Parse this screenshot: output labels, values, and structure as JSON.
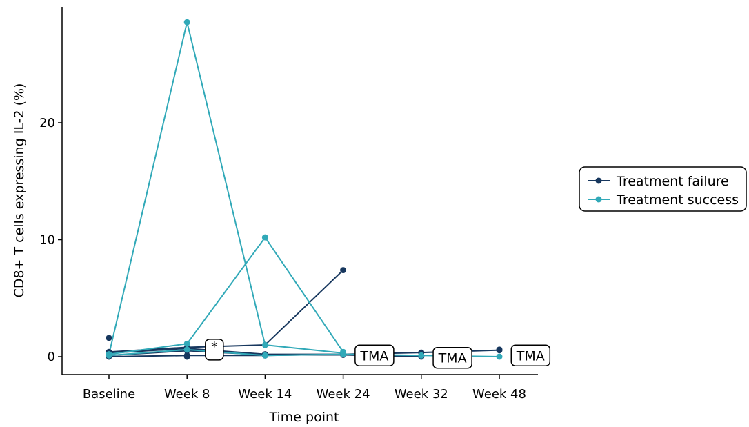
{
  "chart_data": {
    "type": "line",
    "xlabel": "Time point",
    "ylabel": "CD8+ T cells expressing IL-2 (%)",
    "categories": [
      "Baseline",
      "Week 8",
      "Week 14",
      "Week 24",
      "Week 32",
      "Week 48"
    ],
    "ylim": [
      -1.5,
      30
    ],
    "yticks": [
      0,
      10,
      20
    ],
    "grid": false,
    "legend_placement": "right",
    "groups": [
      {
        "name": "Treatment failure",
        "color": "#17375e"
      },
      {
        "name": "Treatment success",
        "color": "#31a9b8"
      }
    ],
    "series": [
      {
        "group": "Treatment failure",
        "values": [
          1.6,
          null,
          null,
          null,
          null,
          null
        ]
      },
      {
        "group": "Treatment failure",
        "values": [
          0.4,
          0.8,
          1.0,
          7.4,
          null,
          0.6
        ]
      },
      {
        "group": "Treatment failure",
        "values": [
          0.3,
          0.7,
          0.2,
          0.2,
          0.35,
          0.55
        ]
      },
      {
        "group": "Treatment failure",
        "values": [
          0.1,
          0.5,
          0.15,
          0.15,
          0.0,
          null
        ]
      },
      {
        "group": "Treatment failure",
        "values": [
          0.0,
          0.1,
          0.1,
          0.2,
          null,
          null
        ]
      },
      {
        "group": "Treatment failure",
        "values": [
          null,
          0.0,
          null,
          null,
          null,
          null
        ]
      },
      {
        "group": "Treatment success",
        "values": [
          0.2,
          28.6,
          1.0,
          0.3,
          null,
          null
        ]
      },
      {
        "group": "Treatment success",
        "values": [
          0.2,
          1.1,
          10.2,
          0.4,
          null,
          null
        ]
      },
      {
        "group": "Treatment success",
        "values": [
          0.1,
          0.6,
          0.1,
          0.2,
          0.1,
          0.0
        ]
      }
    ],
    "annotations": [
      {
        "text": "*",
        "category": "Week 8",
        "offset": 0.35,
        "y": 0.6
      },
      {
        "text": "TMA",
        "category": "Week 24",
        "offset": 0.4,
        "y": 0.1
      },
      {
        "text": "TMA",
        "category": "Week 32",
        "offset": 0.4,
        "y": -0.1
      },
      {
        "text": "TMA",
        "category": "Week 48",
        "offset": 0.4,
        "y": 0.1
      }
    ]
  }
}
